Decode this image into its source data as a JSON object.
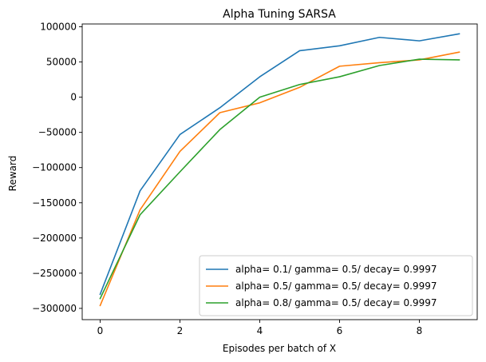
{
  "chart_data": {
    "type": "line",
    "title": "Alpha Tuning SARSA",
    "xlabel": "Episodes per batch of X",
    "ylabel": "Reward",
    "x": [
      0,
      1,
      2,
      3,
      4,
      5,
      6,
      7,
      8,
      9
    ],
    "xlim": [
      -0.45,
      9.45
    ],
    "ylim": [
      -316000,
      104000
    ],
    "xticks": [
      0,
      2,
      4,
      6,
      8
    ],
    "yticks": [
      100000,
      50000,
      0,
      -50000,
      -100000,
      -150000,
      -200000,
      -250000,
      -300000
    ],
    "xtick_labels": [
      "0",
      "2",
      "4",
      "6",
      "8"
    ],
    "ytick_labels": [
      "100000",
      "50000",
      "0",
      "−50000",
      "−100000",
      "−150000",
      "−200000",
      "−250000",
      "−300000"
    ],
    "grid": false,
    "legend_position": "lower-right",
    "series": [
      {
        "name": "alpha= 0.1/ gamma= 0.5/ decay= 0.9997",
        "color": "#1f77b4",
        "values": [
          -280000,
          -133000,
          -53000,
          -15000,
          29000,
          66000,
          73000,
          85000,
          80000,
          90000
        ]
      },
      {
        "name": "alpha= 0.5/ gamma= 0.5/ decay= 0.9997",
        "color": "#ff7f0e",
        "values": [
          -296000,
          -160000,
          -77000,
          -22000,
          -8000,
          14000,
          44000,
          49000,
          53000,
          64000
        ]
      },
      {
        "name": "alpha= 0.8/ gamma= 0.5/ decay= 0.9997",
        "color": "#2ca02c",
        "values": [
          -286000,
          -167000,
          -106000,
          -46000,
          0,
          18000,
          29000,
          45000,
          54000,
          53000
        ]
      }
    ]
  }
}
